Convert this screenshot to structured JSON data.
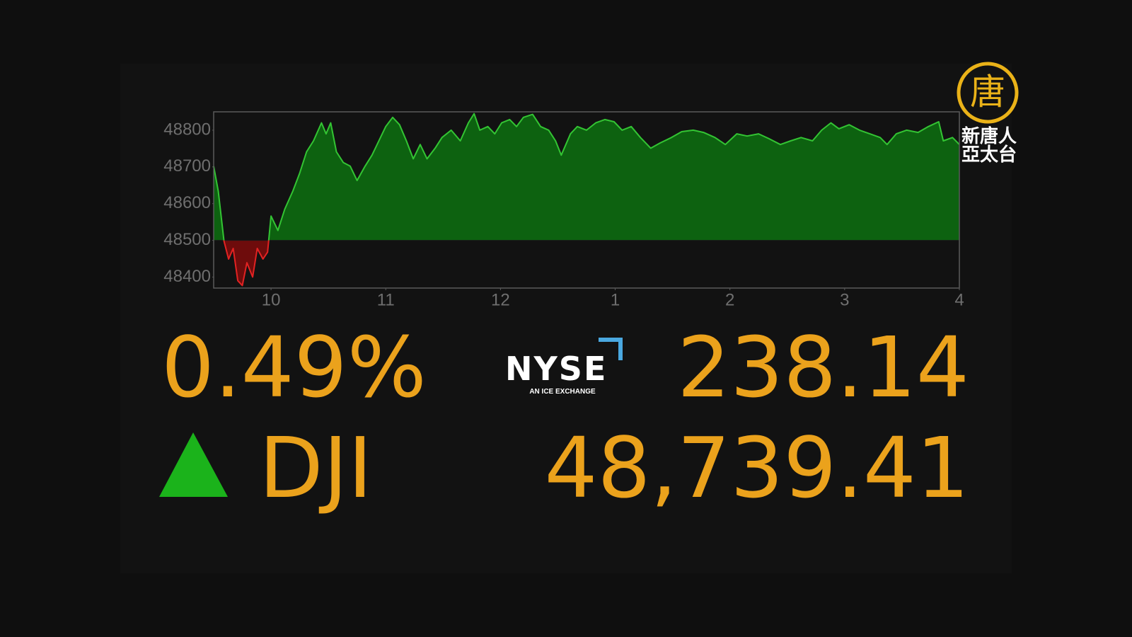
{
  "chart_data": {
    "type": "area",
    "x": [
      9.5,
      9.54,
      9.59,
      9.63,
      9.67,
      9.71,
      9.75,
      9.79,
      9.84,
      9.88,
      9.93,
      9.97,
      10.0,
      10.06,
      10.12,
      10.19,
      10.25,
      10.31,
      10.37,
      10.44,
      10.48,
      10.52,
      10.57,
      10.63,
      10.69,
      10.75,
      10.82,
      10.88,
      10.94,
      11.0,
      11.06,
      11.12,
      11.18,
      11.24,
      11.3,
      11.36,
      11.43,
      11.49,
      11.57,
      11.65,
      11.72,
      11.77,
      11.82,
      11.89,
      11.95,
      12.01,
      12.08,
      12.14,
      12.2,
      12.28,
      12.35,
      12.42,
      12.48,
      12.53,
      12.61,
      12.67,
      12.75,
      12.83,
      12.91,
      12.99,
      13.06,
      13.14,
      13.22,
      13.31,
      13.39,
      13.49,
      13.58,
      13.68,
      13.77,
      13.87,
      13.96,
      14.06,
      14.15,
      14.25,
      14.34,
      14.44,
      14.53,
      14.62,
      14.72,
      14.8,
      14.88,
      14.95,
      15.04,
      15.13,
      15.22,
      15.31,
      15.37,
      15.45,
      15.54,
      15.64,
      15.73,
      15.82,
      15.86,
      15.94,
      16.0
    ],
    "values": [
      48702,
      48634,
      48498,
      48449,
      48478,
      48390,
      48377,
      48439,
      48400,
      48478,
      48449,
      48468,
      48566,
      48527,
      48585,
      48634,
      48683,
      48741,
      48771,
      48820,
      48790,
      48820,
      48741,
      48712,
      48702,
      48663,
      48702,
      48732,
      48771,
      48810,
      48835,
      48815,
      48771,
      48722,
      48761,
      48722,
      48751,
      48780,
      48800,
      48771,
      48820,
      48845,
      48800,
      48810,
      48790,
      48820,
      48829,
      48810,
      48835,
      48843,
      48810,
      48800,
      48771,
      48732,
      48790,
      48810,
      48800,
      48820,
      48829,
      48823,
      48800,
      48810,
      48780,
      48751,
      48765,
      48780,
      48796,
      48800,
      48794,
      48780,
      48761,
      48790,
      48784,
      48790,
      48777,
      48761,
      48771,
      48780,
      48771,
      48800,
      48820,
      48804,
      48815,
      48800,
      48790,
      48780,
      48761,
      48790,
      48800,
      48794,
      48810,
      48823,
      48771,
      48780,
      48761
    ],
    "baseline": 48500,
    "color": "#33c433",
    "fill": "#0d6210",
    "down_color": "#e32222",
    "down_fill": "#6e0c0c",
    "xlim": [
      9.5,
      16
    ],
    "xticks": [
      10,
      11,
      12,
      {
        "value": 13,
        "label": "1"
      },
      {
        "value": 14,
        "label": "2"
      },
      {
        "value": 15,
        "label": "3"
      },
      {
        "value": 16,
        "label": "4"
      }
    ],
    "ylim": [
      48370,
      48850
    ],
    "yticks": [
      48400,
      48500,
      48600,
      48700,
      48800
    ],
    "grid": false
  },
  "ticker": {
    "change_percent": "0.49%",
    "change": "238.14",
    "symbol": "DJI",
    "price": "48,739.41"
  },
  "exchange_logo": {
    "name": "NYSE",
    "tagline": "AN ICE EXCHANGE"
  },
  "channel_logo": {
    "emblem": "唐",
    "line1": "新唐人",
    "line2": "亞太台"
  }
}
